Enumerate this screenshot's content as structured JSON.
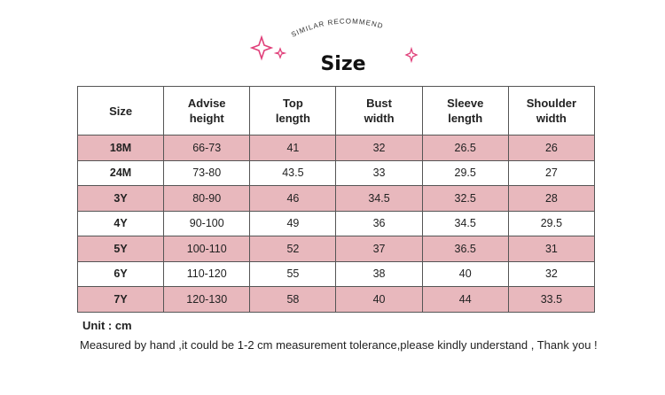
{
  "header": {
    "tagline": "SIMILAR RECOMMEND",
    "title": "Size"
  },
  "table": {
    "columns": [
      [
        "Size"
      ],
      [
        "Advise",
        "height"
      ],
      [
        "Top",
        "length"
      ],
      [
        "Bust",
        "width"
      ],
      [
        "Sleeve",
        "length"
      ],
      [
        "Shoulder",
        "width"
      ]
    ],
    "rows": [
      [
        "18M",
        "66-73",
        41,
        32,
        26.5,
        26
      ],
      [
        "24M",
        "73-80",
        43.5,
        33,
        29.5,
        27
      ],
      [
        "3Y",
        "80-90",
        46,
        34.5,
        32.5,
        28
      ],
      [
        "4Y",
        "90-100",
        49,
        36,
        34.5,
        29.5
      ],
      [
        "5Y",
        "100-110",
        52,
        37,
        36.5,
        31
      ],
      [
        "6Y",
        "110-120",
        55,
        38,
        40,
        32
      ],
      [
        "7Y",
        "120-130",
        58,
        40,
        44,
        33.5
      ]
    ]
  },
  "notes": {
    "unit": "Unit : cm",
    "tolerance": "Measured by hand ,it could be 1-2 cm measurement tolerance,please kindly understand , Thank you !"
  }
}
